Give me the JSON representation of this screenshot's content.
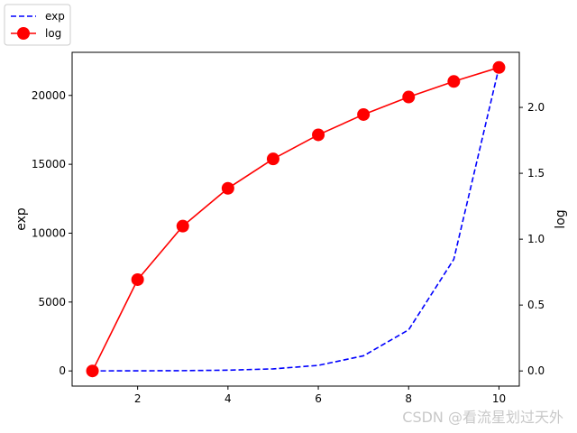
{
  "chart_data": {
    "type": "line",
    "x": [
      1,
      2,
      3,
      4,
      5,
      6,
      7,
      8,
      9,
      10
    ],
    "series": [
      {
        "name": "exp",
        "axis": "left",
        "style": "dashed",
        "color": "#0000ff",
        "values": [
          2.718,
          7.389,
          20.09,
          54.6,
          148.4,
          403.4,
          1096.6,
          2981.0,
          8103.1,
          22026.5
        ]
      },
      {
        "name": "log",
        "axis": "right",
        "style": "solid-markers",
        "color": "#ff0000",
        "values": [
          0.0,
          0.693,
          1.099,
          1.386,
          1.609,
          1.792,
          1.946,
          2.079,
          2.197,
          2.303
        ]
      }
    ],
    "xlim": [
      0.55,
      10.45
    ],
    "ylim_left": [
      -1101,
      23128
    ],
    "ylim_right": [
      -0.115,
      2.418
    ],
    "xticks": [
      "2",
      "4",
      "6",
      "8",
      "10"
    ],
    "yticks_left": [
      "0",
      "5000",
      "10000",
      "15000",
      "20000"
    ],
    "yticks_right": [
      "0.0",
      "0.5",
      "1.0",
      "1.5",
      "2.0"
    ],
    "ylabel_left": "exp",
    "ylabel_right": "log",
    "legend": [
      {
        "label": "exp"
      },
      {
        "label": "log"
      }
    ],
    "legend_placement": "outside-top-left",
    "grid": false
  },
  "watermark": "CSDN @看流星划过天外"
}
